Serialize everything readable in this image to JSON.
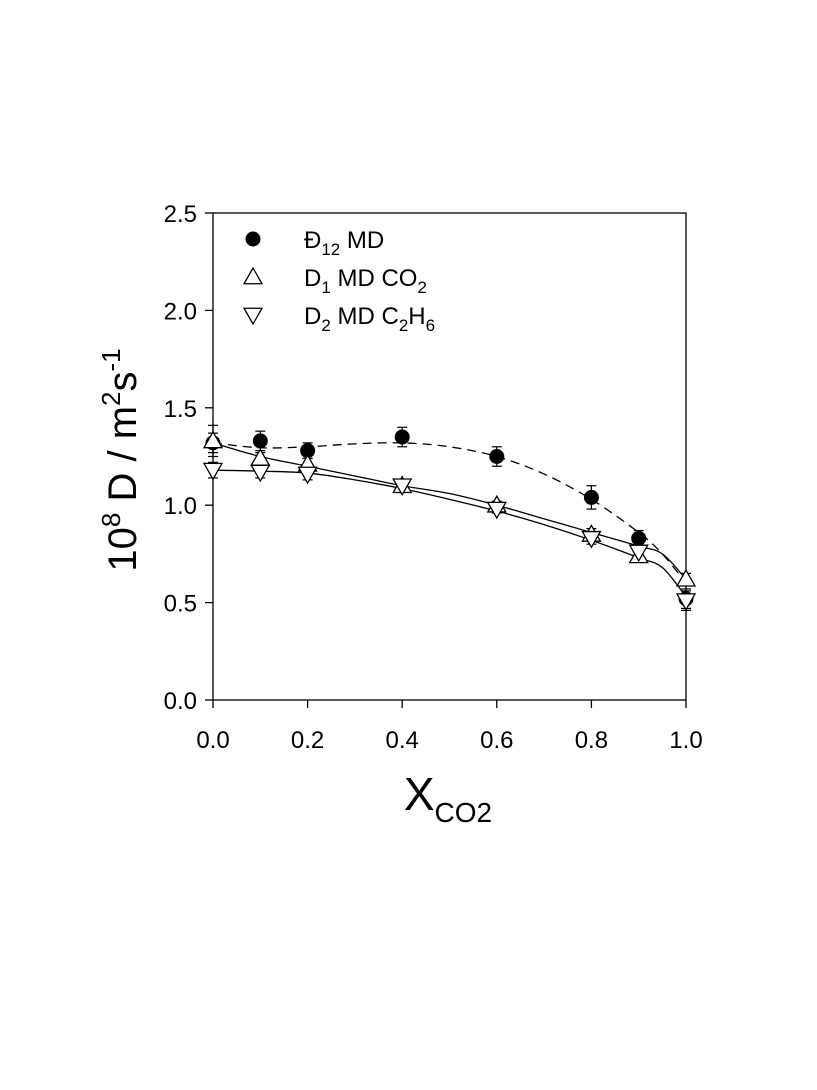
{
  "chart_data": {
    "type": "scatter",
    "xlabel": {
      "main": "X",
      "sub": "CO2"
    },
    "ylabel": {
      "prefix": "10",
      "exp1": "8",
      "mid": " D / m",
      "exp2": "2",
      "mid2": "s",
      "exp3": "-1"
    },
    "xlim": [
      0,
      1
    ],
    "ylim": [
      0,
      2.5
    ],
    "x_ticks": [
      "0.0",
      "0.2",
      "0.4",
      "0.6",
      "0.8",
      "1.0"
    ],
    "y_ticks": [
      "0.0",
      "0.5",
      "1.0",
      "1.5",
      "2.0",
      "2.5"
    ],
    "legend_position": "top-left",
    "series": [
      {
        "name": "Đ12 MD",
        "legend": {
          "base": "Đ",
          "sub": "12",
          "rest": " MD"
        },
        "marker": "filled-circle",
        "line": "dashed",
        "x": [
          0.0,
          0.1,
          0.2,
          0.4,
          0.6,
          0.8,
          0.9,
          1.0
        ],
        "y": [
          1.32,
          1.33,
          1.28,
          1.35,
          1.25,
          1.04,
          0.83,
          0.52
        ],
        "err": [
          0.05,
          0.05,
          0.04,
          0.05,
          0.05,
          0.06,
          0.04,
          0.05
        ],
        "fit_x": [
          0.0,
          0.1,
          0.2,
          0.3,
          0.4,
          0.5,
          0.6,
          0.7,
          0.8,
          0.9,
          0.95,
          1.0
        ],
        "fit_y": [
          1.32,
          1.295,
          1.3,
          1.315,
          1.32,
          1.3,
          1.25,
          1.16,
          1.03,
          0.86,
          0.75,
          0.6
        ]
      },
      {
        "name": "D1 MD CO2",
        "legend": {
          "base": "D",
          "sub": "1",
          "rest": "  MD CO",
          "sub2": "2"
        },
        "marker": "open-triangle-up",
        "line": "solid",
        "x": [
          0.0,
          0.1,
          0.2,
          0.4,
          0.6,
          0.8,
          0.9,
          1.0
        ],
        "y": [
          1.33,
          1.24,
          1.21,
          1.1,
          1.0,
          0.85,
          0.74,
          0.62
        ],
        "err": [
          0.08,
          0.03,
          0.03,
          0.02,
          0.02,
          0.03,
          0.02,
          0.03
        ],
        "fit_x": [
          0.0,
          0.1,
          0.2,
          0.3,
          0.4,
          0.5,
          0.6,
          0.7,
          0.8,
          0.9,
          0.95,
          1.0
        ],
        "fit_y": [
          1.32,
          1.25,
          1.2,
          1.15,
          1.1,
          1.06,
          1.0,
          0.93,
          0.86,
          0.79,
          0.75,
          0.62
        ]
      },
      {
        "name": "D2 MD C2H6",
        "legend": {
          "base": "D",
          "sub": "2",
          "rest": "  MD C",
          "sub2": "2",
          "rest2": "H",
          "sub3": "6"
        },
        "marker": "open-triangle-down",
        "line": "solid",
        "x": [
          0.0,
          0.1,
          0.2,
          0.4,
          0.6,
          0.8,
          0.9,
          1.0
        ],
        "y": [
          1.18,
          1.17,
          1.16,
          1.1,
          0.98,
          0.83,
          0.76,
          0.51
        ],
        "err": [
          0.04,
          0.03,
          0.03,
          0.02,
          0.02,
          0.03,
          0.02,
          0.05
        ],
        "fit_x": [
          0.0,
          0.1,
          0.2,
          0.3,
          0.4,
          0.5,
          0.6,
          0.7,
          0.8,
          0.9,
          0.95,
          1.0
        ],
        "fit_y": [
          1.18,
          1.175,
          1.165,
          1.13,
          1.085,
          1.03,
          0.97,
          0.9,
          0.82,
          0.73,
          0.68,
          0.53
        ]
      }
    ]
  }
}
